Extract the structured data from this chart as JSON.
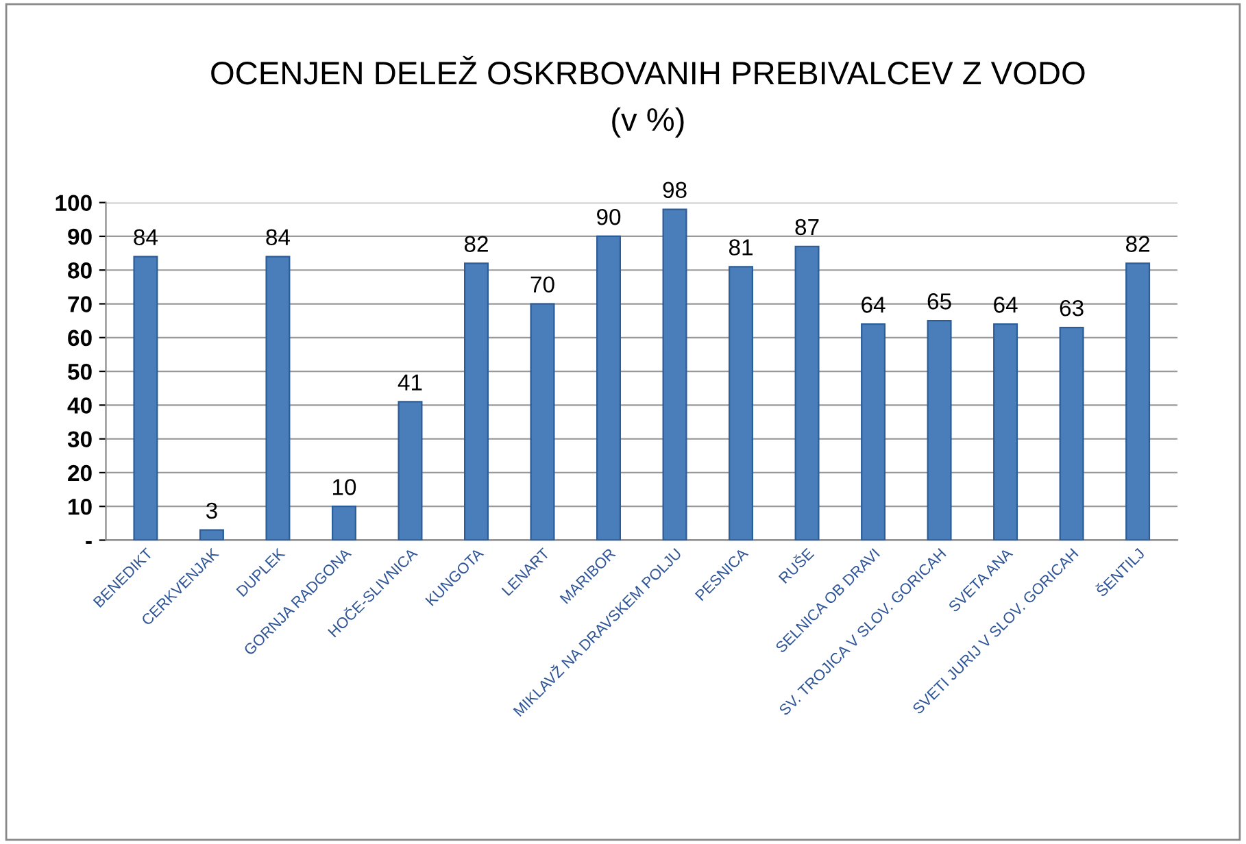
{
  "chart_data": {
    "type": "bar",
    "title": "OCENJEN DELEŽ OSKRBOVANIH PREBIVALCEV Z VODO",
    "subtitle": "(v %)",
    "categories": [
      "BENEDIKT",
      "CERKVENJAK",
      "DUPLEK",
      "GORNJA RADGONA",
      "HOČE-SLIVNICA",
      "KUNGOTA",
      "LENART",
      "MARIBOR",
      "MIKLAVŽ NA DRAVSKEM POLJU",
      "PESNICA",
      "RUŠE",
      "SELNICA OB DRAVI",
      "SV. TROJICA V SLOV. GORICAH",
      "SVETA ANA",
      "SVETI JURIJ V SLOV. GORICAH",
      "ŠENTILJ"
    ],
    "values": [
      84,
      3,
      84,
      10,
      41,
      82,
      70,
      90,
      98,
      81,
      87,
      64,
      65,
      64,
      63,
      82
    ],
    "color": "#4a7ebb",
    "ylim": [
      0,
      100
    ],
    "yticks": [
      {
        "value": 0,
        "label": "-"
      },
      10,
      20,
      30,
      40,
      50,
      60,
      70,
      80,
      90,
      100
    ],
    "grid": "y",
    "data_labels": true
  }
}
